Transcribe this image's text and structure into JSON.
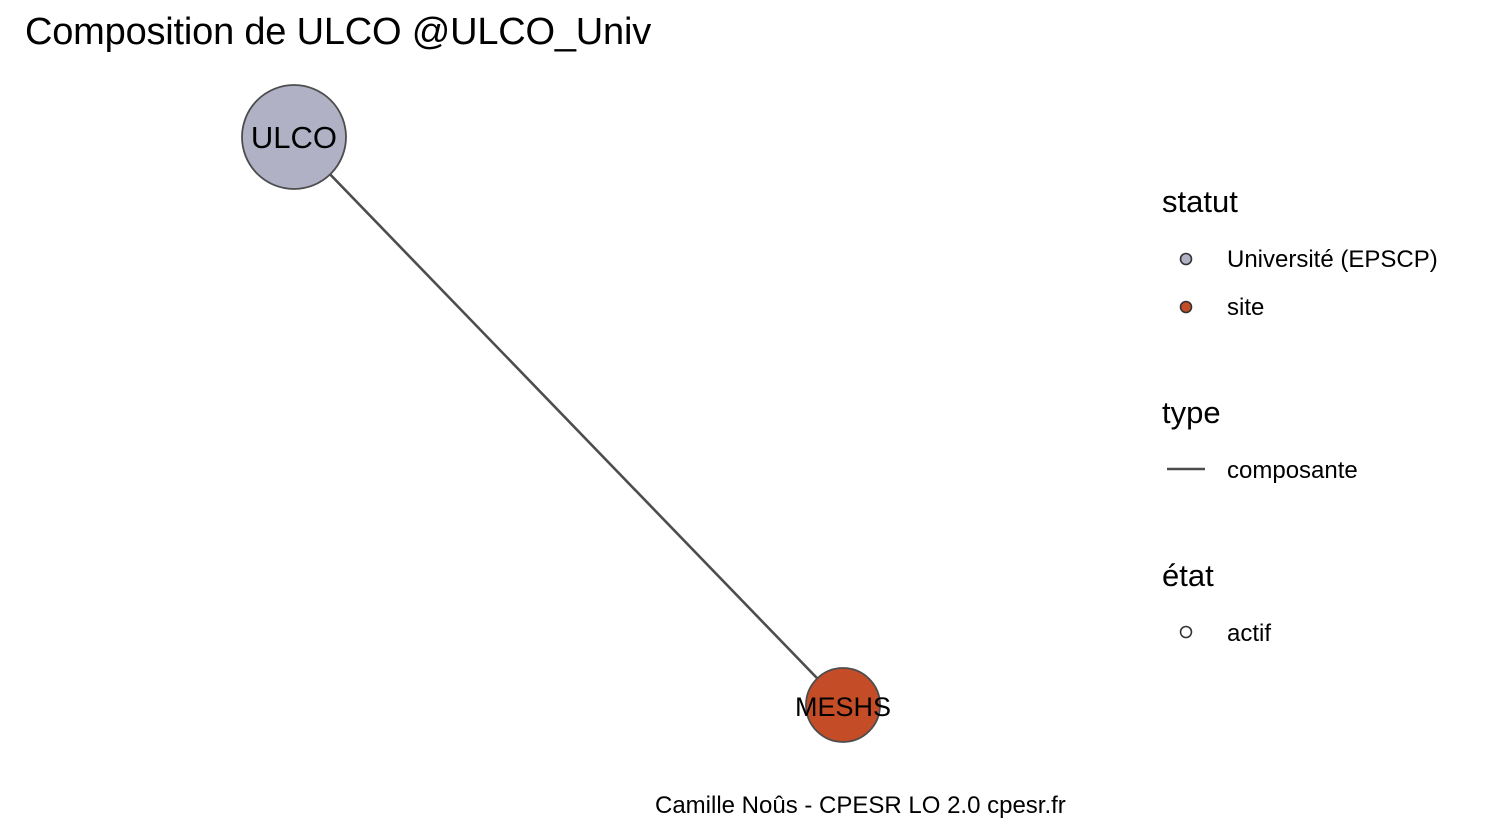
{
  "title": "Composition de ULCO @ULCO_Univ",
  "diagram": {
    "nodes": [
      {
        "id": "ULCO",
        "label": "ULCO",
        "statut": "Université (EPSCP)",
        "etat": "actif",
        "color": "#b0b1c4"
      },
      {
        "id": "MESHS",
        "label": "MESHS",
        "statut": "site",
        "etat": "actif",
        "color": "#c44d27"
      }
    ],
    "edges": [
      {
        "from": "ULCO",
        "to": "MESHS",
        "type": "composante",
        "color": "#4d4d4d"
      }
    ]
  },
  "legend": {
    "statut": {
      "title": "statut",
      "items": [
        {
          "label": "Université (EPSCP)",
          "color": "#b0b1c4"
        },
        {
          "label": "site",
          "color": "#c44d27"
        }
      ]
    },
    "type": {
      "title": "type",
      "items": [
        {
          "label": "composante",
          "color": "#4d4d4d"
        }
      ]
    },
    "etat": {
      "title": "état",
      "items": [
        {
          "label": "actif",
          "fill": "#ffffff"
        }
      ]
    }
  },
  "caption": "Camille Noûs - CPESR LO 2.0 cpesr.fr"
}
